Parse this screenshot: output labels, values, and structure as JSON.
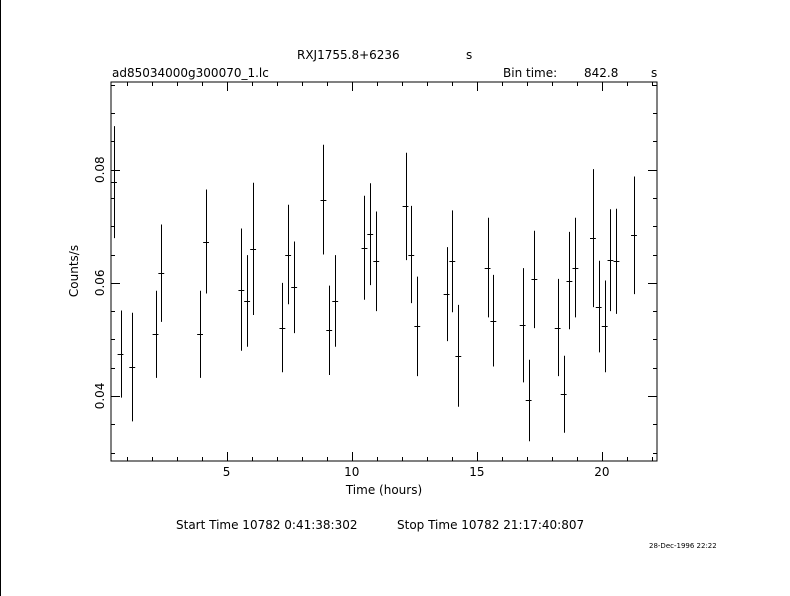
{
  "header": {
    "title": "RXJ1755.8+6236",
    "title_unit": "s",
    "filename": "ad85034000g300070_1.lc",
    "bin_label": "Bin time:",
    "bin_value": "842.8",
    "bin_unit": "s"
  },
  "footer": {
    "start_label": "Start Time 10782  0:41:38:302",
    "stop_label": "Stop Time 10782 21:17:40:807",
    "timestamp": "28-Dec-1996 22:22"
  },
  "chart_data": {
    "type": "scatter",
    "xlabel": "Time (hours)",
    "ylabel": "Counts/s",
    "xlim": [
      0.38,
      22.2
    ],
    "ylim": [
      0.0285,
      0.0955
    ],
    "x_ticks": [
      5,
      10,
      15,
      20
    ],
    "y_ticks": [
      0.04,
      0.06,
      0.08
    ],
    "y_tick_labels": [
      "0.04",
      "0.06",
      "0.08"
    ],
    "grid": false,
    "legend": "none",
    "x_half_width": 0.117,
    "points": [
      {
        "x": 0.5,
        "y": 0.0778,
        "err": 0.0099
      },
      {
        "x": 0.76,
        "y": 0.0474,
        "err": 0.0077
      },
      {
        "x": 1.23,
        "y": 0.0451,
        "err": 0.0096
      },
      {
        "x": 2.16,
        "y": 0.0509,
        "err": 0.0077
      },
      {
        "x": 2.39,
        "y": 0.0617,
        "err": 0.0086
      },
      {
        "x": 3.94,
        "y": 0.0509,
        "err": 0.0077
      },
      {
        "x": 4.18,
        "y": 0.0673,
        "err": 0.0092
      },
      {
        "x": 5.59,
        "y": 0.0588,
        "err": 0.0108
      },
      {
        "x": 5.82,
        "y": 0.0568,
        "err": 0.0081
      },
      {
        "x": 6.06,
        "y": 0.066,
        "err": 0.0117
      },
      {
        "x": 7.23,
        "y": 0.0521,
        "err": 0.0079
      },
      {
        "x": 7.46,
        "y": 0.065,
        "err": 0.0088
      },
      {
        "x": 7.7,
        "y": 0.0592,
        "err": 0.0081
      },
      {
        "x": 8.87,
        "y": 0.0747,
        "err": 0.0097
      },
      {
        "x": 9.1,
        "y": 0.0516,
        "err": 0.0079
      },
      {
        "x": 9.34,
        "y": 0.0568,
        "err": 0.0081
      },
      {
        "x": 10.51,
        "y": 0.0662,
        "err": 0.0092
      },
      {
        "x": 10.74,
        "y": 0.0686,
        "err": 0.009
      },
      {
        "x": 10.98,
        "y": 0.0638,
        "err": 0.0088
      },
      {
        "x": 12.15,
        "y": 0.0735,
        "err": 0.0095
      },
      {
        "x": 12.38,
        "y": 0.065,
        "err": 0.0086
      },
      {
        "x": 12.62,
        "y": 0.0523,
        "err": 0.0088
      },
      {
        "x": 13.79,
        "y": 0.058,
        "err": 0.0083
      },
      {
        "x": 14.02,
        "y": 0.0638,
        "err": 0.009
      },
      {
        "x": 14.26,
        "y": 0.0471,
        "err": 0.009
      },
      {
        "x": 15.43,
        "y": 0.0627,
        "err": 0.0088
      },
      {
        "x": 15.66,
        "y": 0.0533,
        "err": 0.0081
      },
      {
        "x": 16.83,
        "y": 0.0525,
        "err": 0.0101
      },
      {
        "x": 17.07,
        "y": 0.0392,
        "err": 0.0072
      },
      {
        "x": 17.3,
        "y": 0.0606,
        "err": 0.0086
      },
      {
        "x": 18.23,
        "y": 0.0521,
        "err": 0.0086
      },
      {
        "x": 18.47,
        "y": 0.0403,
        "err": 0.0068
      },
      {
        "x": 18.7,
        "y": 0.0604,
        "err": 0.0086
      },
      {
        "x": 18.94,
        "y": 0.0627,
        "err": 0.0088
      },
      {
        "x": 19.64,
        "y": 0.0679,
        "err": 0.0122
      },
      {
        "x": 19.87,
        "y": 0.0558,
        "err": 0.0081
      },
      {
        "x": 20.11,
        "y": 0.0523,
        "err": 0.0081
      },
      {
        "x": 20.34,
        "y": 0.064,
        "err": 0.009
      },
      {
        "x": 20.58,
        "y": 0.0638,
        "err": 0.0093
      },
      {
        "x": 21.28,
        "y": 0.0684,
        "err": 0.0104
      }
    ]
  }
}
